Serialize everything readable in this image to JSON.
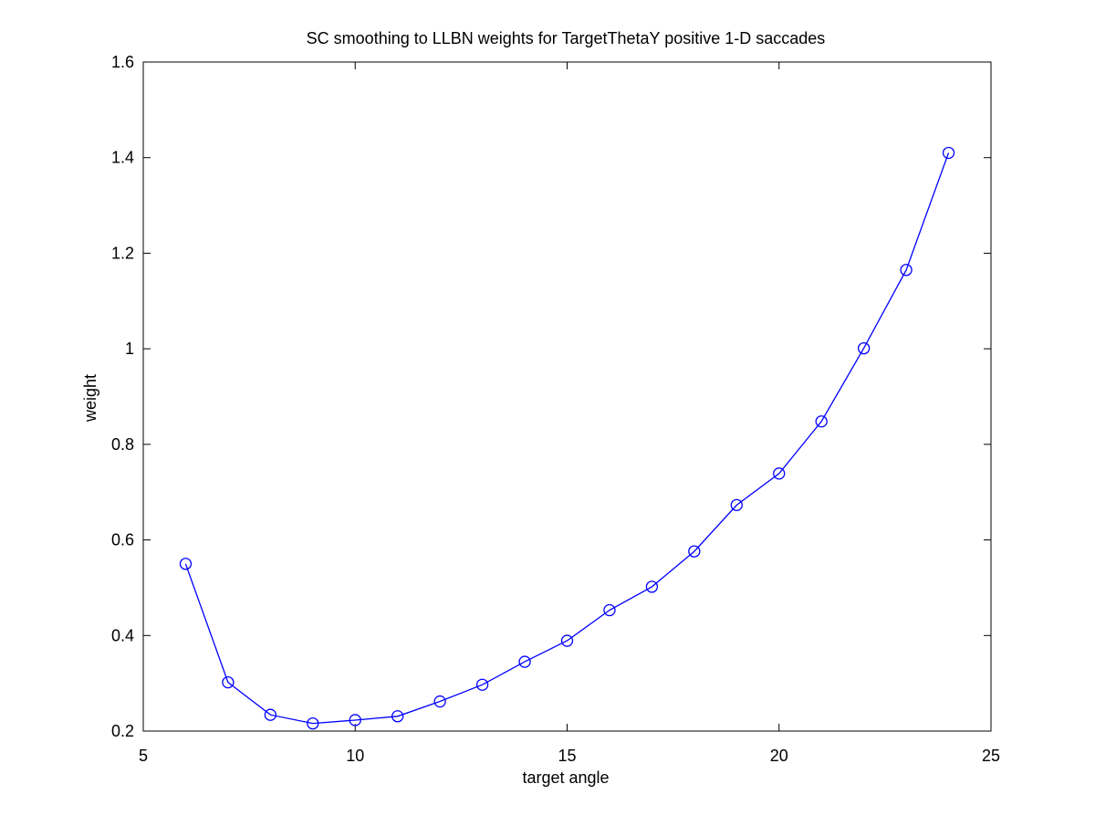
{
  "chart_data": {
    "type": "line",
    "title": "SC smoothing to LLBN weights for TargetThetaY positive 1-D saccades",
    "xlabel": "target angle",
    "ylabel": "weight",
    "xlim": [
      5,
      25
    ],
    "ylim": [
      0.2,
      1.6
    ],
    "xticks": [
      5,
      10,
      15,
      20,
      25
    ],
    "xtick_labels": [
      "5",
      "10",
      "15",
      "20",
      "25"
    ],
    "yticks": [
      0.2,
      0.4,
      0.6,
      0.8,
      1.0,
      1.2,
      1.4,
      1.6
    ],
    "ytick_labels": [
      "0.2",
      "0.4",
      "0.6",
      "0.8",
      "1",
      "1.2",
      "1.4",
      "1.6"
    ],
    "grid": false,
    "marker": "circle",
    "series": [
      {
        "color": "#0000ff",
        "x": [
          6,
          7,
          8,
          9,
          10,
          11,
          12,
          13,
          14,
          15,
          16,
          17,
          18,
          19,
          20,
          21,
          22,
          23,
          24
        ],
        "y": [
          0.55,
          0.302,
          0.234,
          0.216,
          0.223,
          0.231,
          0.262,
          0.297,
          0.345,
          0.389,
          0.453,
          0.502,
          0.576,
          0.673,
          0.739,
          0.848,
          1.001,
          1.165,
          1.41
        ]
      }
    ]
  }
}
